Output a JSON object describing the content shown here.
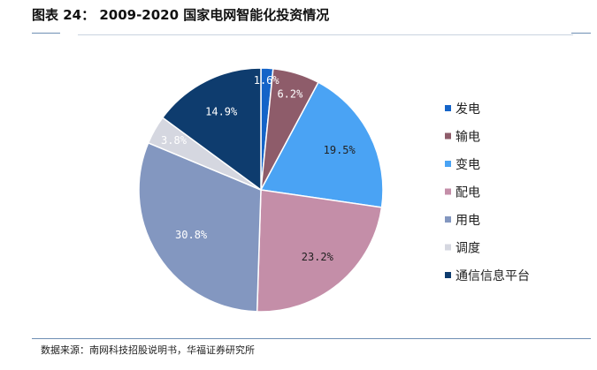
{
  "figure": {
    "title": "图表 24： 2009-2020 国家电网智能化投资情况",
    "source": "数据来源：南网科技招股说明书，华福证券研究所"
  },
  "chart_data": {
    "type": "pie",
    "categories": [
      "发电",
      "输电",
      "变电",
      "配电",
      "用电",
      "调度",
      "通信信息平台"
    ],
    "values": [
      1.6,
      6.2,
      19.5,
      23.2,
      30.8,
      3.8,
      14.9
    ],
    "labels": [
      "1.6%",
      "6.2%",
      "19.5%",
      "23.2%",
      "30.8%",
      "3.8%",
      "14.9%"
    ],
    "colors": [
      "#1464c8",
      "#8e5c6a",
      "#4aa3f4",
      "#c48ea8",
      "#8397c0",
      "#d5d7e0",
      "#0e3c6e"
    ],
    "label_colors": [
      "#ffffff",
      "#ffffff",
      "#222222",
      "#222222",
      "#ffffff",
      "#ffffff",
      "#ffffff"
    ],
    "legend_position": "right"
  }
}
